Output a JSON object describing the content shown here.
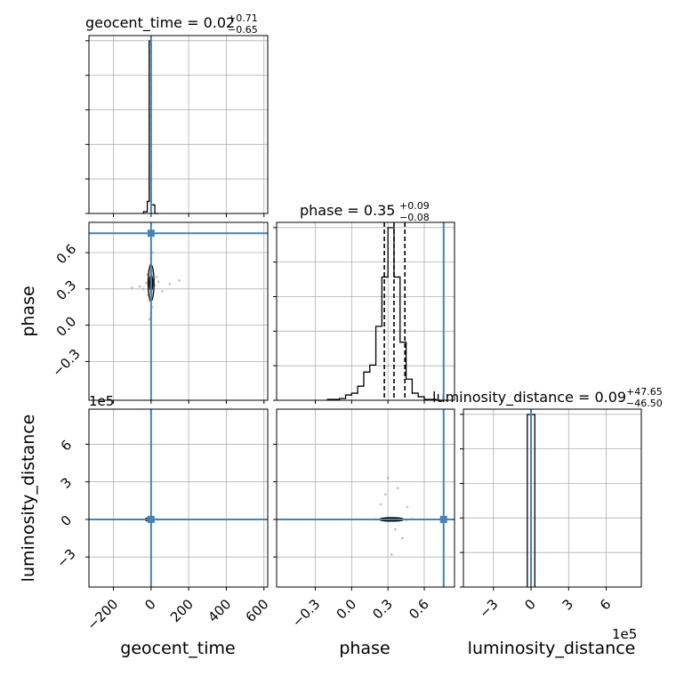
{
  "chart_data": {
    "type": "corner",
    "grid": true,
    "colors": {
      "truth": "#4682b4",
      "hist": "#000000",
      "points": "#9e9e9e",
      "grid": "#b0b0b0"
    },
    "parameters": [
      "geocent_time",
      "phase",
      "luminosity_distance"
    ],
    "axis_labels": {
      "geocent_time": "geocent_time",
      "phase": "phase",
      "luminosity_distance": "luminosity_distance"
    },
    "ranges": {
      "geocent_time": [
        -330,
        620
      ],
      "phase": [
        -0.62,
        0.85
      ],
      "luminosity_distance": [
        -540000,
        880000
      ]
    },
    "ticks": {
      "geocent_time": [
        -200,
        0,
        200,
        400,
        600
      ],
      "phase": [
        -0.3,
        0.0,
        0.3,
        0.6
      ],
      "luminosity_distance": [
        -300000,
        0,
        300000,
        600000
      ]
    },
    "tick_labels": {
      "geocent_time": [
        "−200",
        "0",
        "200",
        "400",
        "600"
      ],
      "phase": [
        "−0.3",
        "0.0",
        "0.3",
        "0.6"
      ],
      "luminosity_distance": [
        "−3",
        "0",
        "3",
        "6"
      ]
    },
    "offset_text": {
      "luminosity_distance": "1e5"
    },
    "truths": {
      "geocent_time": 0,
      "phase": 0.76,
      "luminosity_distance": 0
    },
    "titles": {
      "geocent_time": {
        "prefix": "geocent_time = 0.02",
        "plus": "+0.71",
        "minus": "−0.65"
      },
      "phase": {
        "prefix": "phase = 0.35",
        "plus": "+0.09",
        "minus": "−0.08"
      },
      "luminosity_distance": {
        "prefix": "luminosity_distance = 0.09",
        "plus": "+47.65",
        "minus": "−46.50"
      }
    },
    "quantiles": {
      "geocent_time": [
        0
      ],
      "phase": [
        0.27,
        0.35,
        0.44
      ],
      "luminosity_distance": [
        0
      ]
    },
    "histograms": {
      "geocent_time": {
        "edges": [
          -40,
          -20,
          -10,
          0,
          20,
          40
        ],
        "counts": [
          0.01,
          0.07,
          1.0,
          0.05,
          0.0
        ]
      },
      "phase": {
        "edges": [
          -0.2,
          -0.1,
          -0.05,
          0.0,
          0.05,
          0.1,
          0.15,
          0.2,
          0.25,
          0.3,
          0.35,
          0.4,
          0.45,
          0.5,
          0.55,
          0.6,
          0.65,
          0.7,
          0.75,
          0.8
        ],
        "counts": [
          0.005,
          0.01,
          0.03,
          0.04,
          0.08,
          0.16,
          0.2,
          0.42,
          0.7,
          0.98,
          0.7,
          0.33,
          0.12,
          0.04,
          0.02,
          0.005,
          0.005,
          0.0,
          0.0
        ]
      },
      "luminosity_distance": {
        "edges": [
          -30000,
          0,
          30000
        ],
        "counts": [
          1.0,
          1.0
        ]
      }
    },
    "scatter": {
      "geocent_time_vs_phase": {
        "x": [
          -25,
          -10,
          0,
          10,
          30,
          -60,
          60,
          -5,
          5,
          15,
          -15,
          0,
          0,
          20,
          -20,
          40,
          -40,
          8,
          -8,
          100,
          -100,
          150
        ],
        "y": [
          0.35,
          0.2,
          0.45,
          0.3,
          0.4,
          0.32,
          0.28,
          0.5,
          0.15,
          0.38,
          0.25,
          0.55,
          0.1,
          0.33,
          0.42,
          0.36,
          0.3,
          0.6,
          0.05,
          0.34,
          0.31,
          0.37
        ]
      },
      "geocent_time_vs_luminosity_distance": {
        "x": [
          -20,
          -10,
          0,
          10,
          20,
          -30,
          30,
          5,
          -5,
          40
        ],
        "y": [
          0,
          5000,
          -5000,
          2000,
          -2000,
          0,
          1000,
          8000,
          -8000,
          0
        ]
      },
      "phase_vs_luminosity_distance": {
        "x": [
          0.25,
          0.3,
          0.35,
          0.4,
          0.45,
          0.2,
          0.5,
          0.3,
          0.38,
          0.33,
          0.28,
          0.42,
          0.24,
          0.46,
          0.36
        ],
        "y": [
          0,
          10000,
          -10000,
          5000,
          -5000,
          0,
          2000,
          330000,
          250000,
          -280000,
          200000,
          -150000,
          120000,
          100000,
          -80000
        ]
      }
    },
    "contours_2d": {
      "geocent_time_vs_phase": {
        "center": [
          0,
          0.35
        ],
        "widths": [
          [
            8,
            0.06
          ],
          [
            16,
            0.15
          ]
        ]
      },
      "phase_vs_luminosity_distance": {
        "center": [
          0.33,
          0
        ],
        "widths": [
          [
            0.06,
            8000
          ],
          [
            0.1,
            14000
          ]
        ]
      },
      "geocent_time_vs_luminosity_distance": {
        "center": [
          -10,
          0
        ],
        "widths": [
          [
            10,
            8000
          ],
          [
            22,
            12000
          ]
        ]
      }
    }
  }
}
